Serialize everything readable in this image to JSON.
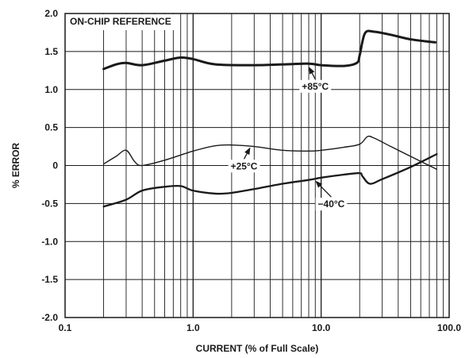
{
  "chart_data": {
    "type": "line",
    "title": "ON-CHIP REFERENCE",
    "xlabel": "CURRENT (% of Full Scale)",
    "ylabel": "% ERROR",
    "xscale": "log",
    "xlim": [
      0.1,
      100
    ],
    "ylim": [
      -2.0,
      2.0
    ],
    "grid": true,
    "x_tick_labels": [
      "0.1",
      "1.0",
      "10.0",
      "100.0"
    ],
    "y_tick_labels": [
      "2.0",
      "1.5",
      "1.0",
      "0.5",
      "0",
      "-0.5",
      "-1.0",
      "-1.5",
      "-2.0"
    ],
    "series": [
      {
        "name": "+85°C",
        "color": "#1a1a1a",
        "x": [
          0.2,
          0.25,
          0.3,
          0.4,
          0.6,
          0.8,
          1.0,
          1.5,
          3,
          5,
          8,
          10,
          15,
          19,
          20,
          22,
          26,
          35,
          50,
          78
        ],
        "y": [
          1.27,
          1.33,
          1.35,
          1.32,
          1.38,
          1.42,
          1.4,
          1.33,
          1.32,
          1.33,
          1.34,
          1.32,
          1.31,
          1.35,
          1.45,
          1.74,
          1.76,
          1.72,
          1.66,
          1.62
        ]
      },
      {
        "name": "+25°C",
        "color": "#1a1a1a",
        "x": [
          0.2,
          0.25,
          0.3,
          0.35,
          0.4,
          0.6,
          1.0,
          1.5,
          2,
          3,
          5,
          8,
          10,
          15,
          20,
          23,
          26,
          35,
          50,
          80
        ],
        "y": [
          0.02,
          0.12,
          0.2,
          0.05,
          0.0,
          0.07,
          0.19,
          0.26,
          0.27,
          0.25,
          0.2,
          0.19,
          0.2,
          0.24,
          0.28,
          0.38,
          0.36,
          0.25,
          0.12,
          -0.05
        ]
      },
      {
        "name": "−40°C",
        "color": "#1a1a1a",
        "x": [
          0.2,
          0.3,
          0.4,
          0.6,
          0.8,
          1.0,
          1.5,
          2,
          3,
          5,
          8,
          10,
          15,
          20,
          21,
          24,
          30,
          50,
          80
        ],
        "y": [
          -0.54,
          -0.45,
          -0.33,
          -0.28,
          -0.27,
          -0.33,
          -0.37,
          -0.36,
          -0.31,
          -0.24,
          -0.19,
          -0.16,
          -0.12,
          -0.1,
          -0.14,
          -0.24,
          -0.18,
          -0.02,
          0.15
        ]
      }
    ],
    "annotations": [
      {
        "text": "+85°C",
        "at": [
          9,
          1.0
        ],
        "points_to": [
          8,
          1.3
        ]
      },
      {
        "text": "+25°C",
        "at": [
          2.5,
          -0.05
        ],
        "points_to": [
          2.8,
          0.24
        ]
      },
      {
        "text": "−40°C",
        "at": [
          12,
          -0.55
        ],
        "points_to": [
          9,
          -0.2
        ]
      }
    ]
  }
}
